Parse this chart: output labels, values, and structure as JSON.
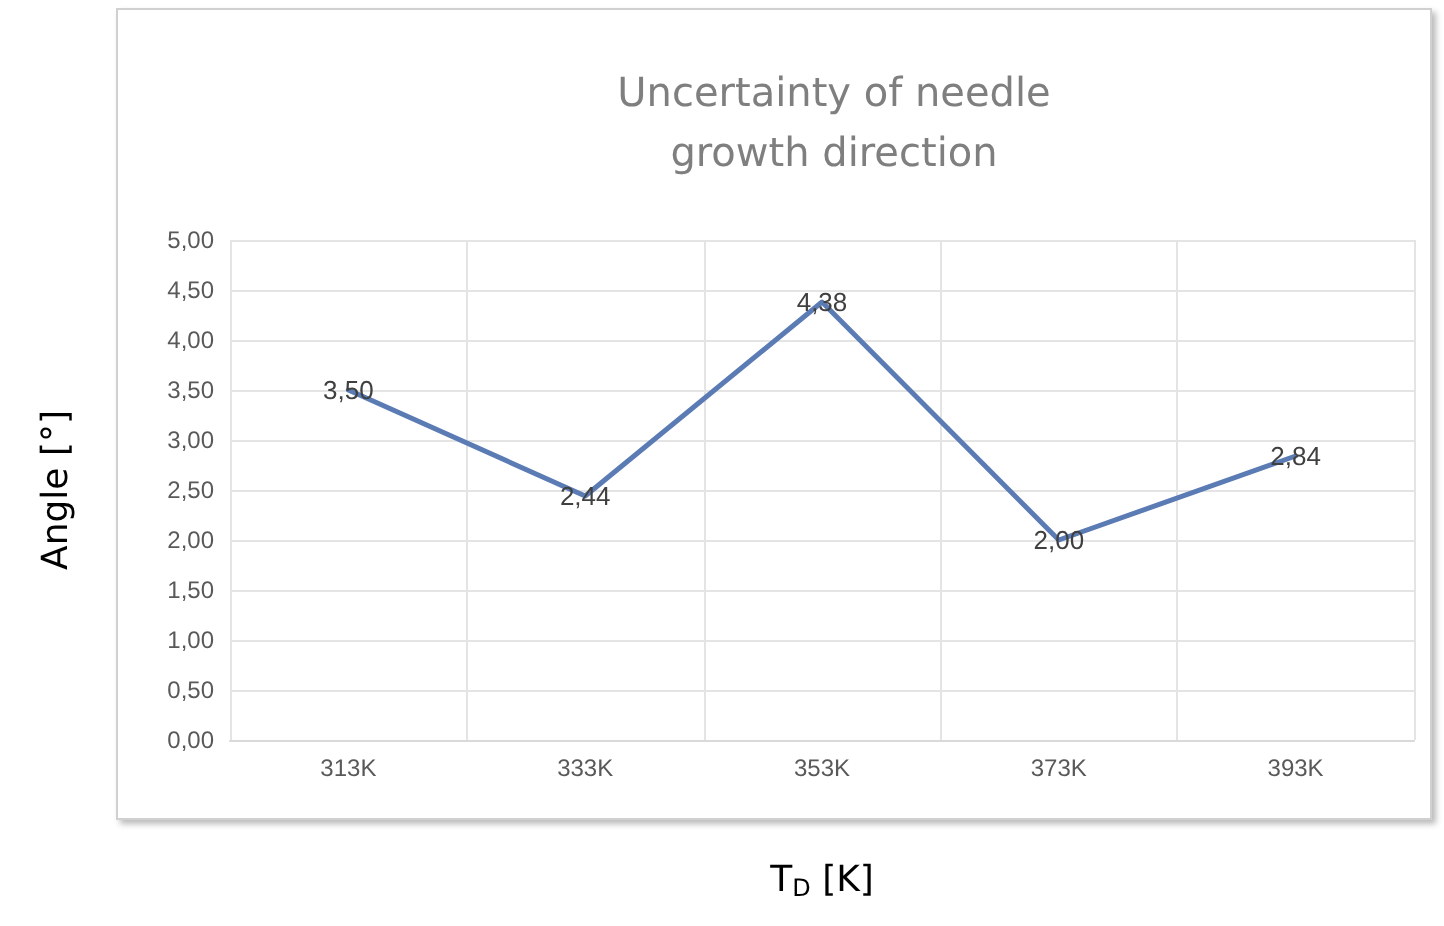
{
  "chart_data": {
    "type": "line",
    "title": "Uncertainty of needle\ngrowth direction",
    "xlabel": "T$_{D}$ [K]",
    "ylabel": "Angle [°]",
    "categories": [
      "313K",
      "333K",
      "353K",
      "373K",
      "393K"
    ],
    "series": [
      {
        "color": "#5b7bb4",
        "values": [
          3.5,
          2.44,
          4.38,
          2.0,
          2.84
        ],
        "value_labels": [
          "3,50",
          "2,44",
          "4,38",
          "2,00",
          "2,84"
        ]
      }
    ],
    "ylim": [
      0,
      5
    ],
    "yticks": [
      {
        "value": 0,
        "label": "0,00"
      },
      {
        "value": 0.5,
        "label": "0,50"
      },
      {
        "value": 1,
        "label": "1,00"
      },
      {
        "value": 1.5,
        "label": "1,50"
      },
      {
        "value": 2,
        "label": "2,00"
      },
      {
        "value": 2.5,
        "label": "2,50"
      },
      {
        "value": 3,
        "label": "3,00"
      },
      {
        "value": 3.5,
        "label": "3,50"
      },
      {
        "value": 4,
        "label": "4,00"
      },
      {
        "value": 4.5,
        "label": "4,50"
      },
      {
        "value": 5,
        "label": "5,00"
      }
    ],
    "grid": true,
    "marker": "none",
    "line_style": "solid"
  }
}
